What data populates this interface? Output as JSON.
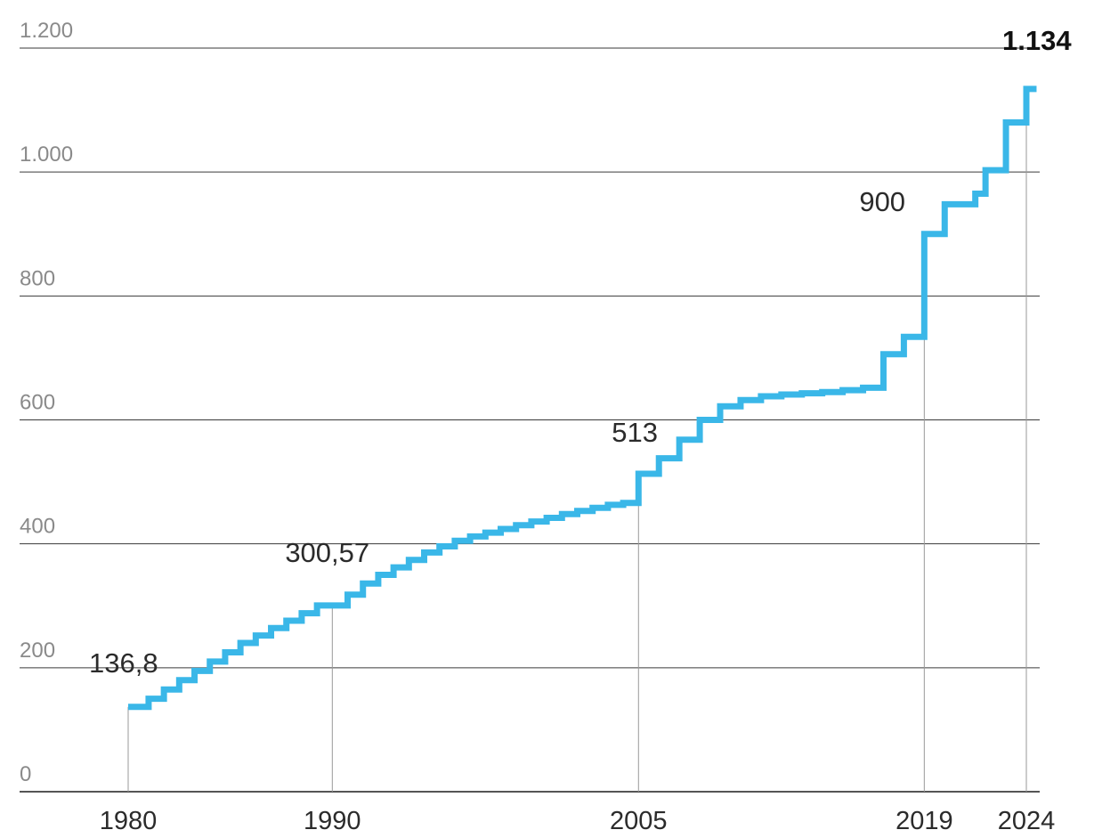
{
  "chart_data": {
    "type": "line",
    "title": "",
    "xlabel": "",
    "ylabel": "",
    "step": true,
    "color": "#3ab7e8",
    "grid": true,
    "xlim": [
      1980,
      2024.5
    ],
    "ylim": [
      0,
      1200
    ],
    "y_ticks": [
      {
        "value": 0,
        "label": "0"
      },
      {
        "value": 200,
        "label": "200"
      },
      {
        "value": 400,
        "label": "400"
      },
      {
        "value": 600,
        "label": "600"
      },
      {
        "value": 800,
        "label": "800"
      },
      {
        "value": 1000,
        "label": "1.000"
      },
      {
        "value": 1200,
        "label": "1.200"
      }
    ],
    "x_ticks": [
      {
        "value": 1980,
        "label": "1980"
      },
      {
        "value": 1990,
        "label": "1990"
      },
      {
        "value": 2005,
        "label": "2005"
      },
      {
        "value": 2019,
        "label": "2019"
      },
      {
        "value": 2024,
        "label": "2024"
      }
    ],
    "series": [
      {
        "x": [
          1980,
          1980.5,
          1981,
          1981.75,
          1982.5,
          1983.25,
          1984,
          1984.75,
          1985.5,
          1986.25,
          1987,
          1987.75,
          1988.5,
          1989.25,
          1990,
          1990.75,
          1991.5,
          1992.25,
          1993,
          1993.75,
          1994.5,
          1995.25,
          1996,
          1996.75,
          1997.5,
          1998.25,
          1999,
          1999.75,
          2000.5,
          2001.25,
          2002,
          2002.75,
          2003.5,
          2004.25,
          2005,
          2005.5,
          2006,
          2007,
          2008,
          2009,
          2010,
          2011,
          2012,
          2013,
          2014,
          2015,
          2016,
          2017,
          2018,
          2019,
          2020,
          2021,
          2021.5,
          2022,
          2023,
          2024,
          2024.5
        ],
        "y": [
          136.8,
          136.8,
          150,
          165,
          180,
          195,
          210,
          225,
          240,
          252,
          264,
          276,
          288,
          300.57,
          300.57,
          318,
          336,
          350,
          362,
          374,
          386,
          396,
          405,
          412,
          418,
          424,
          430,
          436,
          442,
          448,
          453,
          458,
          463,
          466,
          513,
          513,
          538,
          568,
          600,
          622,
          632,
          638,
          641,
          643,
          645,
          648,
          652,
          706,
          734,
          900,
          948,
          948,
          965,
          1003,
          1080,
          1134,
          1134
        ]
      }
    ],
    "annotations": [
      {
        "text": "136,8",
        "x": 1980,
        "y": 136.8
      },
      {
        "text": "300,57",
        "x": 1990,
        "y": 300.57
      },
      {
        "text": "513",
        "x": 2005,
        "y": 513
      },
      {
        "text": "900",
        "x": 2019,
        "y": 900
      },
      {
        "text": "1.134",
        "x": 2024,
        "y": 1134,
        "bold": true
      }
    ]
  }
}
